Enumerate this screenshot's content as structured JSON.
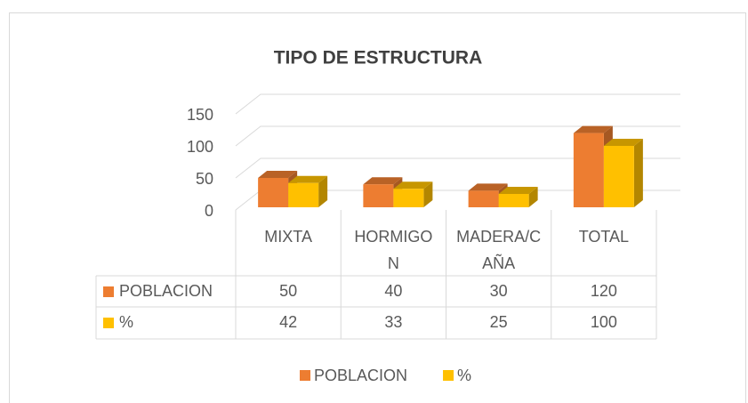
{
  "chart_data": {
    "type": "bar3d",
    "title": "TIPO DE ESTRUCTURA",
    "categories": [
      "MIXTA",
      "HORMIGON",
      "MADERA/CAÑA",
      "TOTAL"
    ],
    "series": [
      {
        "name": "POBLACION",
        "color": "#ed7d31",
        "values": [
          50,
          40,
          30,
          120
        ]
      },
      {
        "name": "%",
        "color": "#ffc000",
        "values": [
          42,
          33,
          25,
          100
        ]
      }
    ],
    "ylim": [
      0,
      150
    ],
    "yticks": [
      0,
      50,
      100,
      150
    ],
    "grid": true,
    "legend": "bottom",
    "data_table": true
  }
}
